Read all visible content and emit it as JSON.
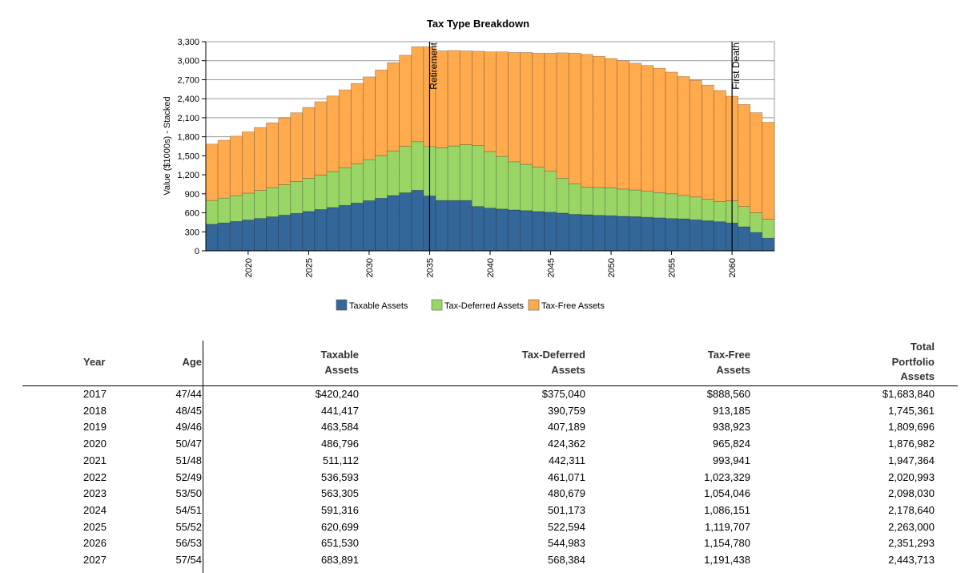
{
  "chart_data": {
    "type": "bar",
    "stacked": true,
    "title": "Tax Type Breakdown",
    "ylabel": "Value ($1000s) - Stacked",
    "xlabel": "",
    "ylim": [
      0,
      3300
    ],
    "yticks": [
      "0",
      "300",
      "600",
      "900",
      "1,200",
      "1,500",
      "1,800",
      "2,100",
      "2,400",
      "2,700",
      "3,000",
      "3,300"
    ],
    "xticks": [
      "2020",
      "2025",
      "2030",
      "2035",
      "2040",
      "2045",
      "2050",
      "2055",
      "2060"
    ],
    "grid": true,
    "legend_position": "bottom",
    "categories": [
      2017,
      2018,
      2019,
      2020,
      2021,
      2022,
      2023,
      2024,
      2025,
      2026,
      2027,
      2028,
      2029,
      2030,
      2031,
      2032,
      2033,
      2034,
      2035,
      2036,
      2037,
      2038,
      2039,
      2040,
      2041,
      2042,
      2043,
      2044,
      2045,
      2046,
      2047,
      2048,
      2049,
      2050,
      2051,
      2052,
      2053,
      2054,
      2055,
      2056,
      2057,
      2058,
      2059,
      2060,
      2061,
      2062,
      2063
    ],
    "series": [
      {
        "name": "Taxable Assets",
        "color": "#336699",
        "values": [
          420,
          441,
          464,
          487,
          511,
          537,
          563,
          591,
          621,
          652,
          684,
          718,
          754,
          792,
          831,
          873,
          916,
          957,
          866,
          795,
          795,
          795,
          700,
          675,
          660,
          645,
          635,
          620,
          610,
          595,
          575,
          570,
          560,
          555,
          545,
          540,
          530,
          520,
          510,
          505,
          490,
          475,
          460,
          440,
          380,
          290,
          200
        ]
      },
      {
        "name": "Tax-Deferred Assets",
        "color": "#99D666",
        "values": [
          375,
          391,
          407,
          424,
          442,
          461,
          481,
          501,
          523,
          545,
          568,
          593,
          618,
          645,
          673,
          703,
          733,
          765,
          780,
          830,
          860,
          880,
          960,
          885,
          830,
          760,
          730,
          700,
          650,
          550,
          480,
          435,
          440,
          440,
          430,
          420,
          410,
          400,
          390,
          370,
          360,
          340,
          320,
          350,
          320,
          310,
          300
        ]
      },
      {
        "name": "Tax-Free Assets",
        "color": "#FFAA4D",
        "values": [
          889,
          913,
          939,
          966,
          994,
          1023,
          1054,
          1086,
          1120,
          1155,
          1191,
          1229,
          1268,
          1308,
          1350,
          1393,
          1437,
          1498,
          1574,
          1530,
          1505,
          1480,
          1490,
          1580,
          1650,
          1725,
          1765,
          1800,
          1860,
          1980,
          2065,
          2095,
          2070,
          2040,
          2025,
          2000,
          1985,
          1960,
          1920,
          1875,
          1840,
          1800,
          1750,
          1650,
          1610,
          1580,
          1530
        ]
      }
    ],
    "annotations": [
      {
        "label": "Retirement",
        "x": 2035
      },
      {
        "label": "First Death",
        "x": 2060
      }
    ]
  },
  "table": {
    "headers": {
      "year": [
        "Year"
      ],
      "age": [
        "Age"
      ],
      "taxable": [
        "Taxable",
        "Assets"
      ],
      "deferred": [
        "Tax-Deferred",
        "Assets"
      ],
      "free": [
        "Tax-Free",
        "Assets"
      ],
      "total": [
        "Total",
        "Portfolio",
        "Assets"
      ]
    },
    "rows": [
      {
        "year": "2017",
        "age": "47/44",
        "taxable": "$420,240",
        "deferred": "$375,040",
        "free": "$888,560",
        "total": "$1,683,840"
      },
      {
        "year": "2018",
        "age": "48/45",
        "taxable": "441,417",
        "deferred": "390,759",
        "free": "913,185",
        "total": "1,745,361"
      },
      {
        "year": "2019",
        "age": "49/46",
        "taxable": "463,584",
        "deferred": "407,189",
        "free": "938,923",
        "total": "1,809,696"
      },
      {
        "year": "2020",
        "age": "50/47",
        "taxable": "486,796",
        "deferred": "424,362",
        "free": "965,824",
        "total": "1,876,982"
      },
      {
        "year": "2021",
        "age": "51/48",
        "taxable": "511,112",
        "deferred": "442,311",
        "free": "993,941",
        "total": "1,947,364"
      },
      {
        "year": "2022",
        "age": "52/49",
        "taxable": "536,593",
        "deferred": "461,071",
        "free": "1,023,329",
        "total": "2,020,993"
      },
      {
        "year": "2023",
        "age": "53/50",
        "taxable": "563,305",
        "deferred": "480,679",
        "free": "1,054,046",
        "total": "2,098,030"
      },
      {
        "year": "2024",
        "age": "54/51",
        "taxable": "591,316",
        "deferred": "501,173",
        "free": "1,086,151",
        "total": "2,178,640"
      },
      {
        "year": "2025",
        "age": "55/52",
        "taxable": "620,699",
        "deferred": "522,594",
        "free": "1,119,707",
        "total": "2,263,000"
      },
      {
        "year": "2026",
        "age": "56/53",
        "taxable": "651,530",
        "deferred": "544,983",
        "free": "1,154,780",
        "total": "2,351,293"
      },
      {
        "year": "2027",
        "age": "57/54",
        "taxable": "683,891",
        "deferred": "568,384",
        "free": "1,191,438",
        "total": "2,443,713"
      }
    ]
  }
}
